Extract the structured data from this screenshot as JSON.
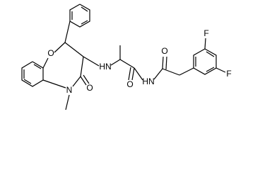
{
  "atoms": [
    {
      "label": "O"
    },
    {
      "label": "HN"
    },
    {
      "label": "N"
    },
    {
      "label": "O"
    },
    {
      "label": "O"
    },
    {
      "label": "HN"
    },
    {
      "label": "O"
    },
    {
      "label": "F"
    },
    {
      "label": "F"
    }
  ]
}
